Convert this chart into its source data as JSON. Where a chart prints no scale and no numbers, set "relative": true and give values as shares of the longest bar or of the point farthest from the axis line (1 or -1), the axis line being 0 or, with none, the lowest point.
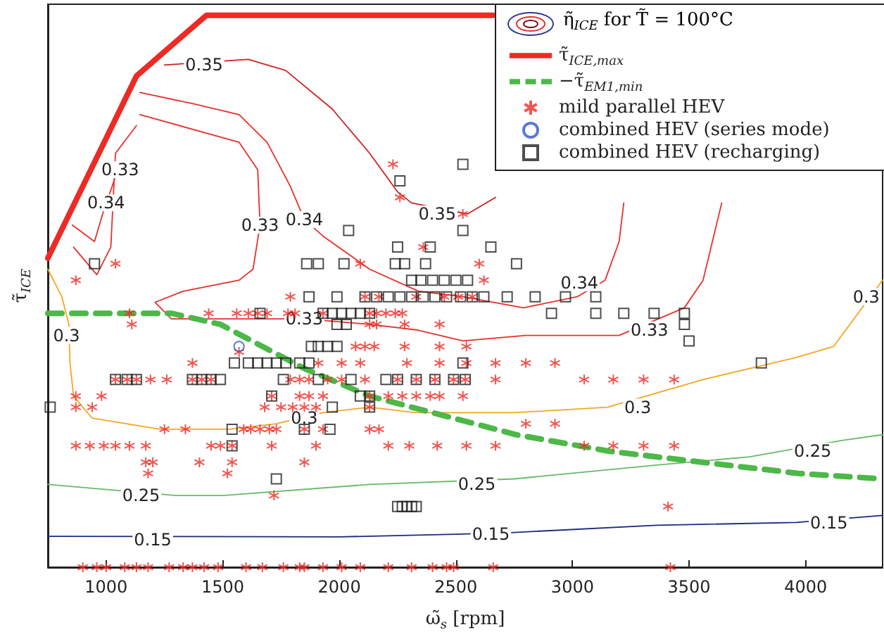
{
  "chart_data": {
    "type": "scatter",
    "relative": true,
    "xlabel": "ω̃$_{s}$ [rpm]",
    "ylabel": "τ̃$_{ICE}$",
    "legend_title": "η̃$_{ICE}$ for T̃ = 100°C",
    "legend": "top right",
    "grid": false,
    "xlim": [
      750,
      4330
    ],
    "xticks": [
      1000,
      1500,
      2000,
      2500,
      3000,
      3500,
      4000
    ],
    "series": [
      {
        "type": "line",
        "name": "τ̃$_{ICE,max}$",
        "color": "#ee2a24",
        "line_style": "solid",
        "x": [
          750,
          1130,
          1430,
          2660
        ],
        "values": [
          0.56,
          0.89,
          1.0,
          1.0
        ]
      },
      {
        "type": "line",
        "name": "−τ̃$_{EM1,min}$",
        "color": "#4cb848",
        "line_style": "dashed",
        "x": [
          750,
          1280,
          1490,
          1670,
          1850,
          2130,
          2400,
          2760,
          3160,
          3560,
          3970,
          4330
        ],
        "values": [
          0.46,
          0.46,
          0.44,
          0.4,
          0.36,
          0.31,
          0.28,
          0.24,
          0.21,
          0.19,
          0.17,
          0.16
        ]
      },
      {
        "name": "mild parallel HEV",
        "color": "#ee2a24",
        "marker": "cross",
        "x": [
          2230,
          2260,
          2530,
          2360,
          1040,
          2090,
          2600,
          870,
          2620,
          1790,
          2110,
          2170,
          2330,
          2450,
          2510,
          2570,
          1100,
          1440,
          1560,
          1610,
          1650,
          1690,
          1780,
          1810,
          1930,
          2130,
          2160,
          2200,
          2240,
          2270,
          1110,
          2130,
          2160,
          2280,
          2430,
          2070,
          2110,
          2150,
          2280,
          2430,
          2545,
          1570,
          1370,
          1910,
          2010,
          2090,
          2290,
          2430,
          2545,
          2670,
          2800,
          2925,
          1040,
          1090,
          1130,
          1190,
          1260,
          1370,
          1410,
          1450,
          1790,
          1830,
          1870,
          1950,
          2010,
          2110,
          2250,
          2330,
          2410,
          2490,
          2540,
          2670,
          3050,
          3175,
          3305,
          3436,
          870,
          980,
          1710,
          1830,
          1870,
          1930,
          2130,
          2210,
          2270,
          2330,
          2390,
          2430,
          2530,
          870,
          940,
          1680,
          1750,
          1800,
          1850,
          1900,
          2130,
          2800,
          2925,
          1250,
          1340,
          1590,
          1620,
          1660,
          1700,
          1730,
          1850,
          1930,
          2130,
          2170,
          870,
          930,
          990,
          1040,
          1100,
          1170,
          1450,
          1490,
          1540,
          1710,
          1900,
          2210,
          2300,
          2420,
          2545,
          2670,
          3050,
          3175,
          3305,
          3436,
          1170,
          1200,
          1400,
          1540,
          1850,
          1180,
          1520,
          1720,
          3410,
          900,
          960,
          1000,
          1080,
          1130,
          1180,
          1270,
          1330,
          1370,
          1420,
          1480,
          1600,
          1670,
          1760,
          1830,
          1850,
          1930,
          2010,
          2090,
          2210,
          2310,
          2400,
          2460,
          2490,
          2660,
          3420
        ],
        "values": [
          0.73,
          0.67,
          0.64,
          0.58,
          0.55,
          0.55,
          0.55,
          0.52,
          0.52,
          0.49,
          0.49,
          0.49,
          0.49,
          0.49,
          0.49,
          0.49,
          0.46,
          0.46,
          0.46,
          0.46,
          0.46,
          0.46,
          0.46,
          0.46,
          0.46,
          0.46,
          0.46,
          0.46,
          0.46,
          0.46,
          0.44,
          0.44,
          0.44,
          0.44,
          0.44,
          0.4,
          0.4,
          0.4,
          0.4,
          0.4,
          0.4,
          0.39,
          0.37,
          0.37,
          0.37,
          0.37,
          0.37,
          0.37,
          0.37,
          0.37,
          0.37,
          0.37,
          0.34,
          0.34,
          0.34,
          0.34,
          0.34,
          0.34,
          0.34,
          0.34,
          0.34,
          0.34,
          0.34,
          0.34,
          0.34,
          0.34,
          0.34,
          0.34,
          0.34,
          0.34,
          0.34,
          0.34,
          0.34,
          0.34,
          0.34,
          0.34,
          0.31,
          0.31,
          0.31,
          0.31,
          0.31,
          0.31,
          0.31,
          0.31,
          0.31,
          0.31,
          0.31,
          0.31,
          0.31,
          0.29,
          0.29,
          0.29,
          0.29,
          0.29,
          0.29,
          0.29,
          0.29,
          0.26,
          0.26,
          0.25,
          0.25,
          0.25,
          0.25,
          0.25,
          0.25,
          0.25,
          0.25,
          0.25,
          0.25,
          0.25,
          0.22,
          0.22,
          0.22,
          0.22,
          0.22,
          0.22,
          0.22,
          0.22,
          0.22,
          0.22,
          0.22,
          0.22,
          0.22,
          0.22,
          0.22,
          0.22,
          0.22,
          0.22,
          0.22,
          0.22,
          0.19,
          0.19,
          0.19,
          0.19,
          0.19,
          0.17,
          0.17,
          0.13,
          0.11,
          0,
          0,
          0,
          0,
          0,
          0,
          0,
          0,
          0,
          0,
          0,
          0,
          0,
          0,
          0,
          0,
          0,
          0,
          0,
          0,
          0,
          0,
          0,
          0,
          0,
          0
        ]
      },
      {
        "name": "combined HEV (series mode)",
        "color": "#3355cc",
        "marker": "circle",
        "x": [
          1570
        ],
        "values": [
          0.4
        ]
      },
      {
        "name": "combined HEV (recharging)",
        "color": "#222222",
        "marker": "square",
        "x": [
          2530,
          2260,
          2040,
          2530,
          2250,
          2390,
          2650,
          950,
          1860,
          1910,
          2020,
          2240,
          2280,
          2370,
          2760,
          2310,
          2350,
          2400,
          2450,
          2500,
          2550,
          1870,
          1990,
          2110,
          2160,
          2210,
          2260,
          2310,
          2360,
          2410,
          2460,
          2520,
          2570,
          2620,
          2720,
          2840,
          2970,
          3100,
          1660,
          1930,
          1970,
          2010,
          2050,
          2090,
          2130,
          2910,
          3100,
          3220,
          3350,
          3480,
          1990,
          2030,
          3480,
          3500,
          1880,
          1910,
          1950,
          1990,
          1550,
          1610,
          1650,
          1690,
          1730,
          1770,
          1830,
          1870,
          2530,
          3810,
          1040,
          1090,
          1130,
          1370,
          1410,
          1450,
          1490,
          1760,
          1910,
          2050,
          2200,
          2250,
          2330,
          2410,
          2490,
          2540,
          1710,
          2090,
          2130,
          760,
          1970,
          2130,
          1540,
          1850,
          1960,
          1540,
          1730,
          2250,
          2270,
          2290,
          2310,
          2330
        ],
        "values": [
          0.73,
          0.7,
          0.61,
          0.61,
          0.58,
          0.58,
          0.58,
          0.55,
          0.55,
          0.55,
          0.55,
          0.55,
          0.55,
          0.55,
          0.55,
          0.52,
          0.52,
          0.52,
          0.52,
          0.52,
          0.52,
          0.49,
          0.49,
          0.49,
          0.49,
          0.49,
          0.49,
          0.49,
          0.49,
          0.49,
          0.49,
          0.49,
          0.49,
          0.49,
          0.49,
          0.49,
          0.49,
          0.49,
          0.46,
          0.46,
          0.46,
          0.46,
          0.46,
          0.46,
          0.46,
          0.46,
          0.46,
          0.46,
          0.46,
          0.46,
          0.44,
          0.44,
          0.44,
          0.41,
          0.4,
          0.4,
          0.4,
          0.4,
          0.37,
          0.37,
          0.37,
          0.37,
          0.37,
          0.37,
          0.37,
          0.37,
          0.37,
          0.37,
          0.34,
          0.34,
          0.34,
          0.34,
          0.34,
          0.34,
          0.34,
          0.34,
          0.34,
          0.34,
          0.34,
          0.34,
          0.34,
          0.34,
          0.34,
          0.34,
          0.31,
          0.31,
          0.31,
          0.29,
          0.29,
          0.29,
          0.25,
          0.25,
          0.25,
          0.22,
          0.16,
          0.11,
          0.11,
          0.11,
          0.11,
          0.11
        ]
      },
      {
        "type": "line",
        "color": "#cc2222",
        "x": [
          1250,
          1610,
          1770,
          1970,
          2130,
          2250,
          2310,
          2550,
          2670
        ],
        "values": [
          0.91,
          0.92,
          0.9,
          0.83,
          0.75,
          0.68,
          0.66,
          0.64,
          0.67
        ]
      },
      {
        "type": "line",
        "color": "#e8302a",
        "x": [
          1145,
          1370,
          1570,
          1690,
          1790,
          1850,
          1930,
          2130,
          2340,
          2530,
          2790,
          3020,
          3140,
          3200,
          3220
        ],
        "values": [
          0.86,
          0.84,
          0.82,
          0.77,
          0.69,
          0.63,
          0.6,
          0.54,
          0.5,
          0.49,
          0.47,
          0.49,
          0.52,
          0.59,
          0.66
        ]
      },
      {
        "type": "line",
        "color": "#e8302a",
        "x": [
          855,
          950,
          985,
          1050
        ],
        "values": [
          0.62,
          0.59,
          0.64,
          0.72
        ]
      },
      {
        "type": "line",
        "color": "#e8302a",
        "x": [
          1130,
          1040,
          1020,
          960,
          860
        ],
        "values": [
          0.8,
          0.75,
          0.58,
          0.53,
          0.58
        ]
      },
      {
        "type": "line",
        "color": "#e8302a",
        "x": [
          1145,
          1570,
          1650,
          1660,
          1630,
          1570,
          1330,
          1210,
          1280,
          1850,
          2130,
          2330,
          2530,
          2800,
          3200,
          3480,
          3560,
          3640
        ],
        "values": [
          0.82,
          0.77,
          0.72,
          0.62,
          0.54,
          0.52,
          0.5,
          0.48,
          0.45,
          0.45,
          0.44,
          0.43,
          0.41,
          0.42,
          0.42,
          0.47,
          0.52,
          0.66
        ]
      },
      {
        "type": "line",
        "color": "#f5a623",
        "x": [
          750,
          810,
          840,
          845,
          860,
          940,
          1230,
          1530,
          1730,
          1930,
          2130,
          2330,
          2750,
          3150,
          3560,
          3960,
          4120,
          4330
        ],
        "values": [
          0.54,
          0.49,
          0.44,
          0.37,
          0.31,
          0.27,
          0.25,
          0.25,
          0.26,
          0.28,
          0.29,
          0.28,
          0.28,
          0.29,
          0.34,
          0.38,
          0.4,
          0.52
        ]
      },
      {
        "type": "line",
        "color": "#66bb66",
        "x": [
          750,
          1300,
          1500,
          2130,
          2750,
          3360,
          3760,
          4160,
          4330
        ],
        "values": [
          0.15,
          0.13,
          0.13,
          0.15,
          0.16,
          0.185,
          0.2,
          0.23,
          0.24
        ]
      },
      {
        "type": "line",
        "color": "#1a2a80",
        "x": [
          750,
          2000,
          2530,
          2750,
          3360,
          3960,
          4330
        ],
        "values": [
          0.056,
          0.055,
          0.06,
          0.063,
          0.076,
          0.081,
          0.094
        ]
      }
    ],
    "annotations": [
      {
        "text": "0.35",
        "x": 1420,
        "y": 0.91
      },
      {
        "text": "0.35",
        "x": 2420,
        "y": 0.64
      },
      {
        "text": "0.34",
        "x": 1850,
        "y": 0.63
      },
      {
        "text": "0.34",
        "x": 3030,
        "y": 0.515
      },
      {
        "text": "0.34",
        "x": 1000,
        "y": 0.66
      },
      {
        "text": "0.33",
        "x": 1060,
        "y": 0.72
      },
      {
        "text": "0.33",
        "x": 1660,
        "y": 0.62
      },
      {
        "text": "0.33",
        "x": 1850,
        "y": 0.45
      },
      {
        "text": "0.33",
        "x": 3330,
        "y": 0.43
      },
      {
        "text": "0.3",
        "x": 830,
        "y": 0.42
      },
      {
        "text": "0.3",
        "x": 1850,
        "y": 0.27
      },
      {
        "text": "0.3",
        "x": 3280,
        "y": 0.29
      },
      {
        "text": "0.3",
        "x": 4260,
        "y": 0.49
      },
      {
        "text": "0.25",
        "x": 1150,
        "y": 0.13
      },
      {
        "text": "0.25",
        "x": 2590,
        "y": 0.15
      },
      {
        "text": "0.25",
        "x": 4030,
        "y": 0.21
      },
      {
        "text": "0.15",
        "x": 1200,
        "y": 0.05
      },
      {
        "text": "0.15",
        "x": 2650,
        "y": 0.06
      },
      {
        "text": "0.15",
        "x": 4100,
        "y": 0.08
      }
    ]
  }
}
